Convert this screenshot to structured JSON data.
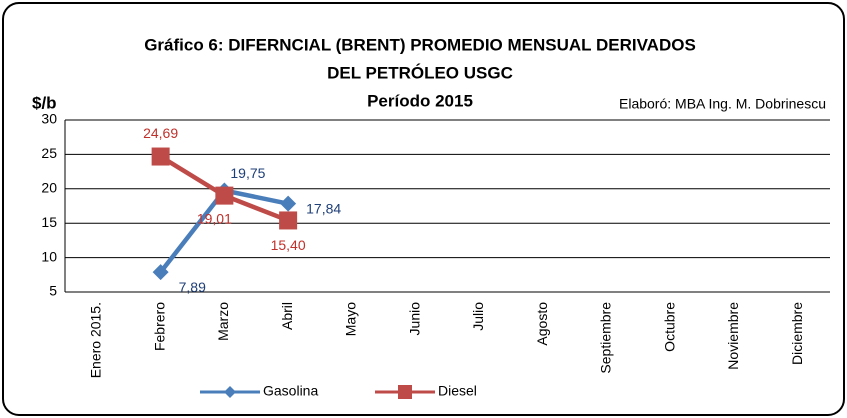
{
  "chart_data": {
    "type": "line",
    "title": "Gráfico 6: DIFERNCIAL (BRENT) PROMEDIO MENSUAL DERIVADOS",
    "title_line2": "DEL PETRÓLEO USGC",
    "subtitle": "Período 2015",
    "annotation": "Elaboró: MBA Ing. M. Dobrinescu",
    "y_label": "$/b",
    "categories": [
      "Enero 2015.",
      "Febrero",
      "Marzo",
      "Abril",
      "Mayo",
      "Junio",
      "Julio",
      "Agosto",
      "Septiembre",
      "Octubre",
      "Noviembre",
      "Diciembre"
    ],
    "series": [
      {
        "name": "Gasolina",
        "color": "#4a7ebb",
        "marker": "diamond",
        "values": [
          null,
          7.89,
          19.75,
          17.84,
          null,
          null,
          null,
          null,
          null,
          null,
          null,
          null
        ],
        "value_labels": [
          null,
          "7,89",
          "19,75",
          "17,84",
          null,
          null,
          null,
          null,
          null,
          null,
          null,
          null
        ]
      },
      {
        "name": "Diesel",
        "color": "#be4b48",
        "marker": "square",
        "values": [
          null,
          24.69,
          19.01,
          15.4,
          null,
          null,
          null,
          null,
          null,
          null,
          null,
          null
        ],
        "value_labels": [
          null,
          "24,69",
          "19,01",
          "15,40",
          null,
          null,
          null,
          null,
          null,
          null,
          null,
          null
        ]
      }
    ],
    "ylim": [
      5,
      30
    ],
    "yticks": [
      5,
      10,
      15,
      20,
      25,
      30
    ],
    "grid": true,
    "legend": "bottom"
  }
}
